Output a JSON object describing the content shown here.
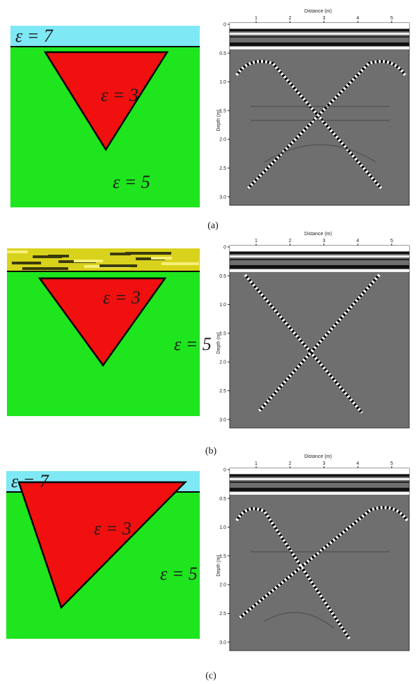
{
  "panels": [
    {
      "label": "(a)",
      "model": {
        "layer_label": "ε = 7",
        "target_label": "ε = 3",
        "background_label": "ε = 5"
      },
      "radargram": {
        "x_label": "Distance (m)",
        "y_label": "Depth (m)",
        "x_ticks": [
          "1",
          "2",
          "3",
          "4",
          "5"
        ],
        "y_ticks": [
          "0",
          "0.5",
          "1.0",
          "1.5",
          "2.0",
          "2.5",
          "3.0"
        ]
      }
    },
    {
      "label": "(b)",
      "model": {
        "target_label": "ε = 3",
        "background_label": "ε = 5"
      },
      "radargram": {
        "x_label": "Distance (m)",
        "y_label": "Depth (m)",
        "x_ticks": [
          "1",
          "2",
          "3",
          "4",
          "5"
        ],
        "y_ticks": [
          "0",
          "0.5",
          "1.0",
          "1.5",
          "2.0",
          "2.5",
          "3.0"
        ]
      }
    },
    {
      "label": "(c)",
      "model": {
        "layer_label": "ε = 7",
        "target_label": "ε = 3",
        "background_label": "ε = 5"
      },
      "radargram": {
        "x_label": "Distance (m)",
        "y_label": "Depth (m)",
        "x_ticks": [
          "1",
          "2",
          "3",
          "4",
          "5"
        ],
        "y_ticks": [
          "0",
          "0.5",
          "1.0",
          "1.5",
          "2.0",
          "2.5",
          "3.0"
        ]
      }
    }
  ]
}
